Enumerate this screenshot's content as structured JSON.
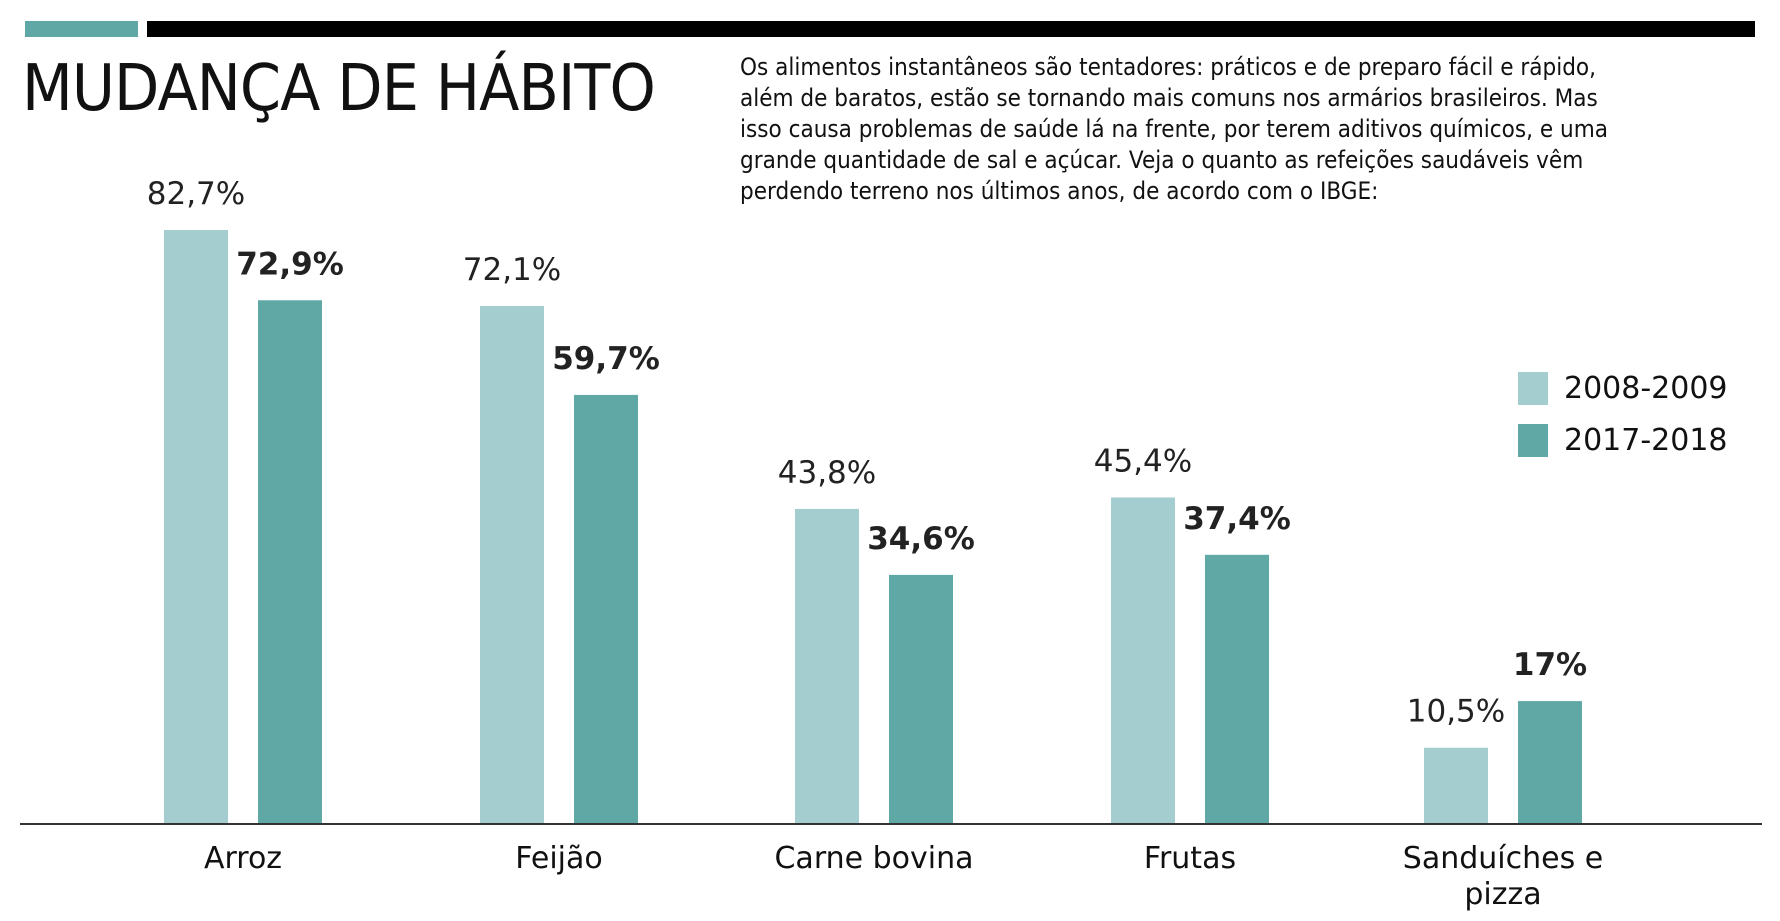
{
  "title": "MUDANÇA DE HÁBITO",
  "intro": "Os alimentos instantâneos são tentadores: práticos e de preparo fácil e rápido, além de baratos, estão se tornando mais comuns nos armários brasileiros. Mas isso causa problemas de saúde lá na frente, por terem aditivos químicos, e uma grande quantidade de sal e açúcar. Veja o quanto as refeições saudáveis vêm perdendo terreno nos últimos anos, de acordo com o IBGE:",
  "colors": {
    "light": "#a3cdcf",
    "dark": "#5fa8a5",
    "accent_bar": "#5fa8a5",
    "rule": "#000000"
  },
  "chart_data": {
    "type": "bar",
    "categories": [
      [
        "Arroz"
      ],
      [
        "Feijão"
      ],
      [
        "Carne bovina"
      ],
      [
        "Frutas"
      ],
      [
        "Sanduíches e",
        "pizza"
      ]
    ],
    "series": [
      {
        "name": "2008-2009",
        "values": [
          82.7,
          72.1,
          43.8,
          45.4,
          10.5
        ],
        "labels": [
          "82,7%",
          "72,1%",
          "43,8%",
          "45,4%",
          "10,5%"
        ]
      },
      {
        "name": "2017-2018",
        "values": [
          72.9,
          59.7,
          34.6,
          37.4,
          17
        ],
        "labels": [
          "72,9%",
          "59,7%",
          "34,6%",
          "37,4%",
          "17%"
        ]
      }
    ],
    "ylim": [
      0,
      82.7
    ],
    "grid": false,
    "legend": "right"
  }
}
